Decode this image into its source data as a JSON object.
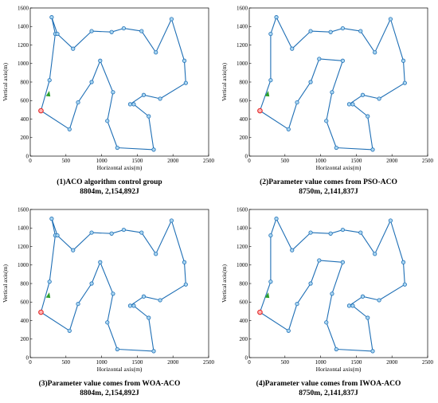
{
  "chart_data": [
    {
      "type": "line",
      "title": "(1)ACO algorithm control group",
      "subtitle": "8804m, 2,154,892J",
      "xlabel": "Horizontal axis(m)",
      "ylabel": "Vertical axis(m)",
      "xlim": [
        0,
        2500
      ],
      "ylim": [
        0,
        1600
      ],
      "xticks": [
        "0",
        "500",
        "1000",
        "1500",
        "2000",
        "2500"
      ],
      "yticks": [
        "0",
        "200",
        "400",
        "600",
        "800",
        "1000",
        "1200",
        "1400",
        "1600"
      ],
      "grid": false,
      "start": {
        "x": 150,
        "y": 490
      },
      "arrow": {
        "x": 250,
        "y": 670
      },
      "route": {
        "x": [
          150,
          270,
          350,
          300,
          380,
          600,
          860,
          1140,
          1310,
          1560,
          1760,
          1980,
          2160,
          2180,
          1820,
          1590,
          1400,
          1450,
          1660,
          1730,
          1220,
          1080,
          1160,
          980,
          860,
          670,
          550,
          150
        ],
        "y": [
          490,
          820,
          1320,
          1500,
          1320,
          1160,
          1350,
          1340,
          1380,
          1350,
          1120,
          1480,
          1030,
          790,
          620,
          660,
          560,
          560,
          430,
          70,
          90,
          380,
          690,
          1030,
          800,
          580,
          290,
          490
        ]
      }
    },
    {
      "type": "line",
      "title": "(2)Parameter value comes from PSO-ACO",
      "subtitle": "8750m, 2,141,837J",
      "xlabel": "Horizontal axis(m)",
      "ylabel": "Vertical axis(m)",
      "xlim": [
        0,
        2500
      ],
      "ylim": [
        0,
        1600
      ],
      "xticks": [
        "0",
        "500",
        "1000",
        "1500",
        "2000",
        "2500"
      ],
      "yticks": [
        "0",
        "200",
        "400",
        "600",
        "800",
        "1000",
        "1200",
        "1400",
        "1600"
      ],
      "grid": false,
      "start": {
        "x": 150,
        "y": 490
      },
      "arrow": {
        "x": 250,
        "y": 670
      },
      "route": {
        "x": [
          150,
          300,
          300,
          380,
          600,
          860,
          1140,
          1310,
          1560,
          1760,
          1980,
          2160,
          2180,
          1820,
          1590,
          1400,
          1450,
          1660,
          1730,
          1220,
          1080,
          1160,
          1310,
          980,
          860,
          670,
          550,
          150
        ],
        "y": [
          490,
          820,
          1320,
          1500,
          1160,
          1350,
          1340,
          1380,
          1350,
          1120,
          1480,
          1030,
          790,
          620,
          660,
          560,
          560,
          430,
          70,
          90,
          380,
          690,
          1030,
          1050,
          800,
          580,
          290,
          490
        ]
      }
    },
    {
      "type": "line",
      "title": "(3)Parameter value comes from WOA-ACO",
      "subtitle": "8804m, 2,154,892J",
      "xlabel": "Horizontal axis(m)",
      "ylabel": "Vertical axis(m)",
      "xlim": [
        0,
        2500
      ],
      "ylim": [
        0,
        1600
      ],
      "xticks": [
        "0",
        "500",
        "1000",
        "1500",
        "2000",
        "2500"
      ],
      "yticks": [
        "0",
        "200",
        "400",
        "600",
        "800",
        "1000",
        "1200",
        "1400",
        "1600"
      ],
      "grid": false,
      "start": {
        "x": 150,
        "y": 490
      },
      "arrow": {
        "x": 250,
        "y": 670
      },
      "route": {
        "x": [
          150,
          270,
          350,
          300,
          380,
          600,
          860,
          1140,
          1310,
          1560,
          1760,
          1980,
          2160,
          2180,
          1820,
          1590,
          1400,
          1450,
          1660,
          1730,
          1220,
          1080,
          1160,
          980,
          860,
          670,
          550,
          150
        ],
        "y": [
          490,
          820,
          1320,
          1500,
          1320,
          1160,
          1350,
          1340,
          1380,
          1350,
          1120,
          1480,
          1030,
          790,
          620,
          660,
          560,
          560,
          430,
          70,
          90,
          380,
          690,
          1030,
          800,
          580,
          290,
          490
        ]
      }
    },
    {
      "type": "line",
      "title": "(4)Parameter value comes from IWOA-ACO",
      "subtitle": "8750m, 2,141,837J",
      "xlabel": "Horizontal axis(m)",
      "ylabel": "Vertical axis(m)",
      "xlim": [
        0,
        2500
      ],
      "ylim": [
        0,
        1600
      ],
      "xticks": [
        "0",
        "500",
        "1000",
        "1500",
        "2000",
        "2500"
      ],
      "yticks": [
        "0",
        "200",
        "400",
        "600",
        "800",
        "1000",
        "1200",
        "1400",
        "1600"
      ],
      "grid": false,
      "start": {
        "x": 150,
        "y": 490
      },
      "arrow": {
        "x": 250,
        "y": 670
      },
      "route": {
        "x": [
          150,
          300,
          300,
          380,
          600,
          860,
          1140,
          1310,
          1560,
          1760,
          1980,
          2160,
          2180,
          1820,
          1590,
          1400,
          1450,
          1660,
          1730,
          1220,
          1080,
          1160,
          1310,
          980,
          860,
          670,
          550,
          150
        ],
        "y": [
          490,
          820,
          1320,
          1500,
          1160,
          1350,
          1340,
          1380,
          1350,
          1120,
          1480,
          1030,
          790,
          620,
          660,
          560,
          560,
          430,
          70,
          90,
          380,
          690,
          1030,
          1050,
          800,
          580,
          290,
          490
        ]
      }
    }
  ],
  "colors": {
    "route": "#1f6fb5",
    "node_fill": "#a9d6f2",
    "start": "#e02020",
    "arrow": "#2ca02c"
  }
}
